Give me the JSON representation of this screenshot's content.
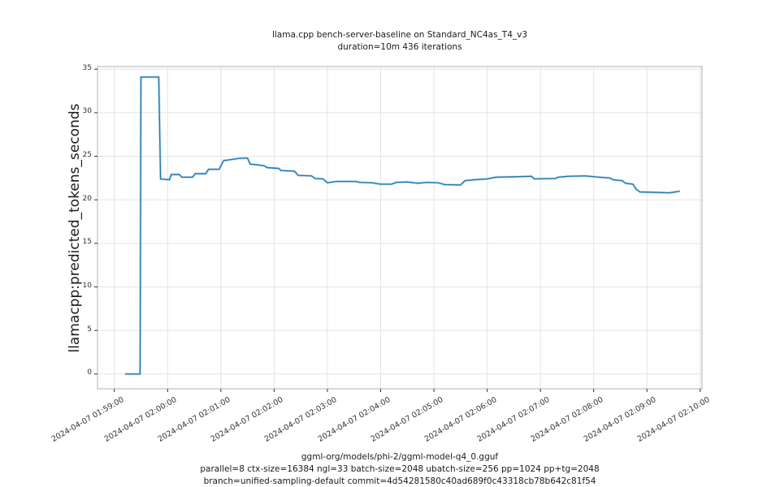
{
  "figure": {
    "title_line1": "llama.cpp bench-server-baseline on Standard_NC4as_T4_v3",
    "title_line2": "duration=10m 436 iterations",
    "ylabel": "llamacpp:predicted_tokens_seconds",
    "caption_line1": "ggml-org/models/phi-2/ggml-model-q4_0.gguf",
    "caption_line2": "parallel=8 ctx-size=16384 ngl=33 batch-size=2048 ubatch-size=256 pp=1024 pp+tg=2048",
    "caption_line3": "branch=unified-sampling-default commit=4d54281580c40ad689f0c43318cb78b642c81f54"
  },
  "chart_data": {
    "type": "line",
    "title": "llama.cpp bench-server-baseline on Standard_NC4as_T4_v3\nduration=10m 436 iterations",
    "ylabel": "llamacpp:predicted_tokens_seconds",
    "xlabel": "ggml-org/models/phi-2/ggml-model-q4_0.gguf\nparallel=8 ctx-size=16384 ngl=33 batch-size=2048 ubatch-size=256 pp=1024 pp+tg=2048\nbranch=unified-sampling-default commit=4d54281580c40ad689f0c43318cb78b642c81f54",
    "grid": true,
    "legend": null,
    "line_color": "#1f77b4",
    "band_color": "#a9cde3",
    "grid_color": "#e4e4e4",
    "spine_color": "#b0b0b0",
    "tick_color": "#333333",
    "x_base": "2024-04-07 01:59:00",
    "x_unit": "seconds since x_base",
    "xlim_seconds": [
      -19,
      662
    ],
    "ylim": [
      -1.7,
      35.3
    ],
    "yticks": [
      0,
      5,
      10,
      15,
      20,
      25,
      30,
      35
    ],
    "xticks_seconds": [
      0,
      60,
      120,
      180,
      240,
      300,
      360,
      420,
      480,
      540,
      600,
      660
    ],
    "xtick_labels": [
      "2024-04-07 01:59:00",
      "2024-04-07 02:00:00",
      "2024-04-07 02:01:00",
      "2024-04-07 02:02:00",
      "2024-04-07 02:03:00",
      "2024-04-07 02:04:00",
      "2024-04-07 02:05:00",
      "2024-04-07 02:06:00",
      "2024-04-07 02:07:00",
      "2024-04-07 02:08:00",
      "2024-04-07 02:09:00",
      "2024-04-07 02:10:00"
    ],
    "series": [
      {
        "name": "llamacpp:predicted_tokens_seconds",
        "points": [
          [
            12,
            0
          ],
          [
            29,
            0
          ],
          [
            30,
            34.1
          ],
          [
            50,
            34.1
          ],
          [
            52,
            22.4
          ],
          [
            62,
            22.3
          ],
          [
            64,
            22.9
          ],
          [
            73,
            22.9
          ],
          [
            76,
            22.6
          ],
          [
            88,
            22.6
          ],
          [
            91,
            23.0
          ],
          [
            103,
            23.0
          ],
          [
            106,
            23.5
          ],
          [
            118,
            23.5
          ],
          [
            123,
            24.5
          ],
          [
            130,
            24.6
          ],
          [
            140,
            24.75
          ],
          [
            150,
            24.8
          ],
          [
            153,
            24.1
          ],
          [
            162,
            24.0
          ],
          [
            169,
            23.9
          ],
          [
            172,
            23.7
          ],
          [
            185,
            23.6
          ],
          [
            188,
            23.35
          ],
          [
            203,
            23.3
          ],
          [
            207,
            22.8
          ],
          [
            222,
            22.75
          ],
          [
            226,
            22.45
          ],
          [
            235,
            22.4
          ],
          [
            240,
            21.95
          ],
          [
            250,
            22.1
          ],
          [
            272,
            22.1
          ],
          [
            276,
            22.0
          ],
          [
            290,
            21.95
          ],
          [
            300,
            21.8
          ],
          [
            312,
            21.8
          ],
          [
            318,
            22.0
          ],
          [
            330,
            22.05
          ],
          [
            342,
            21.9
          ],
          [
            352,
            22.0
          ],
          [
            365,
            21.95
          ],
          [
            372,
            21.75
          ],
          [
            390,
            21.7
          ],
          [
            395,
            22.2
          ],
          [
            405,
            22.3
          ],
          [
            420,
            22.4
          ],
          [
            430,
            22.6
          ],
          [
            455,
            22.65
          ],
          [
            470,
            22.7
          ],
          [
            473,
            22.4
          ],
          [
            497,
            22.45
          ],
          [
            500,
            22.6
          ],
          [
            512,
            22.7
          ],
          [
            530,
            22.75
          ],
          [
            546,
            22.6
          ],
          [
            558,
            22.5
          ],
          [
            562,
            22.3
          ],
          [
            572,
            22.2
          ],
          [
            576,
            21.9
          ],
          [
            584,
            21.8
          ],
          [
            588,
            21.2
          ],
          [
            592,
            20.9
          ],
          [
            610,
            20.85
          ],
          [
            625,
            20.8
          ],
          [
            632,
            20.9
          ],
          [
            637,
            21.0
          ]
        ]
      }
    ]
  }
}
